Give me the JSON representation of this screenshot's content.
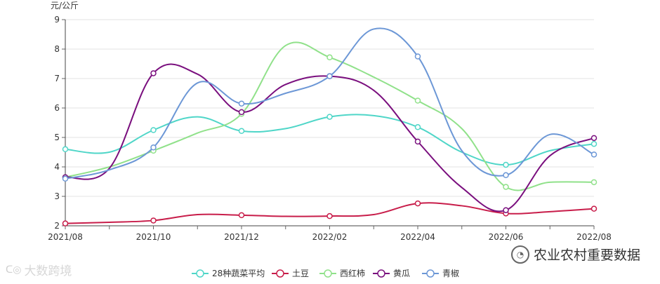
{
  "chart_data": {
    "type": "line",
    "ylabel": "元/公斤",
    "ylim": [
      2,
      9
    ],
    "yticks": [
      2,
      3,
      4,
      5,
      6,
      7,
      8,
      9
    ],
    "x": [
      "2021/08",
      "2021/09",
      "2021/10",
      "2021/11",
      "2021/12",
      "2022/01",
      "2022/02",
      "2022/03",
      "2022/04",
      "2022/05",
      "2022/06",
      "2022/07",
      "2022/08"
    ],
    "xtick_labels": [
      "2021/08",
      "2021/10",
      "2021/12",
      "2022/02",
      "2022/04",
      "2022/06",
      "2022/08"
    ],
    "grid": "horizontal",
    "legend_position": "bottom-center",
    "series": [
      {
        "name": "28种蔬菜平均",
        "color": "#4fd6c8",
        "values": [
          4.6,
          4.5,
          5.25,
          5.7,
          5.22,
          5.3,
          5.7,
          5.74,
          5.35,
          4.5,
          4.07,
          4.55,
          4.78
        ]
      },
      {
        "name": "土豆",
        "color": "#c81d4a",
        "values": [
          2.08,
          2.12,
          2.18,
          2.38,
          2.36,
          2.32,
          2.33,
          2.38,
          2.76,
          2.68,
          2.42,
          2.48,
          2.58
        ]
      },
      {
        "name": "西红柿",
        "color": "#90e18a",
        "values": [
          3.65,
          4.0,
          4.55,
          5.15,
          5.8,
          8.12,
          7.72,
          7.05,
          6.25,
          5.3,
          3.32,
          3.48,
          3.48
        ]
      },
      {
        "name": "黄瓜",
        "color": "#7a0f7e",
        "values": [
          3.65,
          3.95,
          7.18,
          7.15,
          5.86,
          6.8,
          7.08,
          6.6,
          4.86,
          3.3,
          2.53,
          4.38,
          4.98
        ]
      },
      {
        "name": "青椒",
        "color": "#6c97d6",
        "values": [
          3.6,
          3.9,
          4.66,
          6.85,
          6.15,
          6.5,
          7.08,
          8.68,
          7.75,
          4.55,
          3.72,
          5.1,
          4.42
        ]
      }
    ]
  },
  "watermarks": {
    "right_text": "农业农村重要数据",
    "left_text": "大数跨境"
  }
}
